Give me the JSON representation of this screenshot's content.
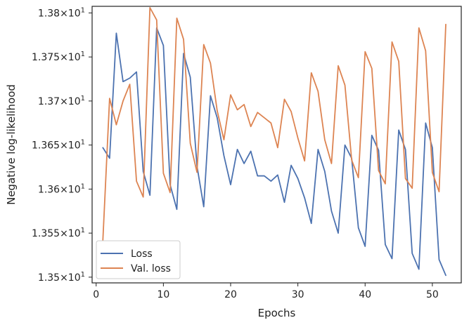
{
  "chart_data": {
    "type": "line",
    "xlabel": "Epochs",
    "ylabel": "Negative log-likelihood",
    "xlim": [
      -0.6,
      54.3
    ],
    "ylim": [
      13.4935,
      13.8075
    ],
    "x_ticks": [
      0,
      10,
      20,
      30,
      40,
      50
    ],
    "x_tick_labels": [
      "0",
      "10",
      "20",
      "30",
      "40",
      "50"
    ],
    "y_ticks": [
      13.5,
      13.55,
      13.6,
      13.65,
      13.7,
      13.75,
      13.8
    ],
    "y_tick_labels": [
      {
        "base": "1.35×10",
        "exp": "1"
      },
      {
        "base": "1.355×10",
        "exp": "1"
      },
      {
        "base": "1.36×10",
        "exp": "1"
      },
      {
        "base": "1.365×10",
        "exp": "1"
      },
      {
        "base": "1.37×10",
        "exp": "1"
      },
      {
        "base": "1.375×10",
        "exp": "1"
      },
      {
        "base": "1.38×10",
        "exp": "1"
      }
    ],
    "grid": false,
    "legend_position": "lower-left",
    "x": [
      1,
      2,
      3,
      4,
      5,
      6,
      7,
      8,
      9,
      10,
      11,
      12,
      13,
      14,
      15,
      16,
      17,
      18,
      19,
      20,
      21,
      22,
      23,
      24,
      25,
      26,
      27,
      28,
      29,
      30,
      31,
      32,
      33,
      34,
      35,
      36,
      37,
      38,
      39,
      40,
      41,
      42,
      43,
      44,
      45,
      46,
      47,
      48,
      49,
      50,
      51,
      52
    ],
    "series": [
      {
        "name": "Loss",
        "color": "#4c72b0",
        "values": [
          13.647,
          13.635,
          13.777,
          13.722,
          13.726,
          13.733,
          13.62,
          13.593,
          13.783,
          13.763,
          13.605,
          13.577,
          13.754,
          13.727,
          13.626,
          13.58,
          13.706,
          13.681,
          13.638,
          13.605,
          13.645,
          13.629,
          13.643,
          13.615,
          13.615,
          13.609,
          13.616,
          13.585,
          13.627,
          13.612,
          13.59,
          13.561,
          13.645,
          13.62,
          13.575,
          13.55,
          13.65,
          13.635,
          13.556,
          13.535,
          13.661,
          13.644,
          13.537,
          13.521,
          13.667,
          13.645,
          13.527,
          13.509,
          13.675,
          13.647,
          13.52,
          13.502
        ]
      },
      {
        "name": "Val. loss",
        "color": "#dd8452",
        "values": [
          13.542,
          13.703,
          13.673,
          13.7,
          13.719,
          13.609,
          13.591,
          13.806,
          13.792,
          13.618,
          13.596,
          13.794,
          13.77,
          13.652,
          13.619,
          13.764,
          13.743,
          13.689,
          13.656,
          13.707,
          13.69,
          13.696,
          13.671,
          13.687,
          13.681,
          13.675,
          13.647,
          13.702,
          13.688,
          13.658,
          13.632,
          13.732,
          13.711,
          13.656,
          13.629,
          13.74,
          13.718,
          13.633,
          13.613,
          13.756,
          13.737,
          13.621,
          13.606,
          13.767,
          13.745,
          13.612,
          13.601,
          13.783,
          13.757,
          13.619,
          13.597,
          13.787
        ]
      }
    ]
  }
}
